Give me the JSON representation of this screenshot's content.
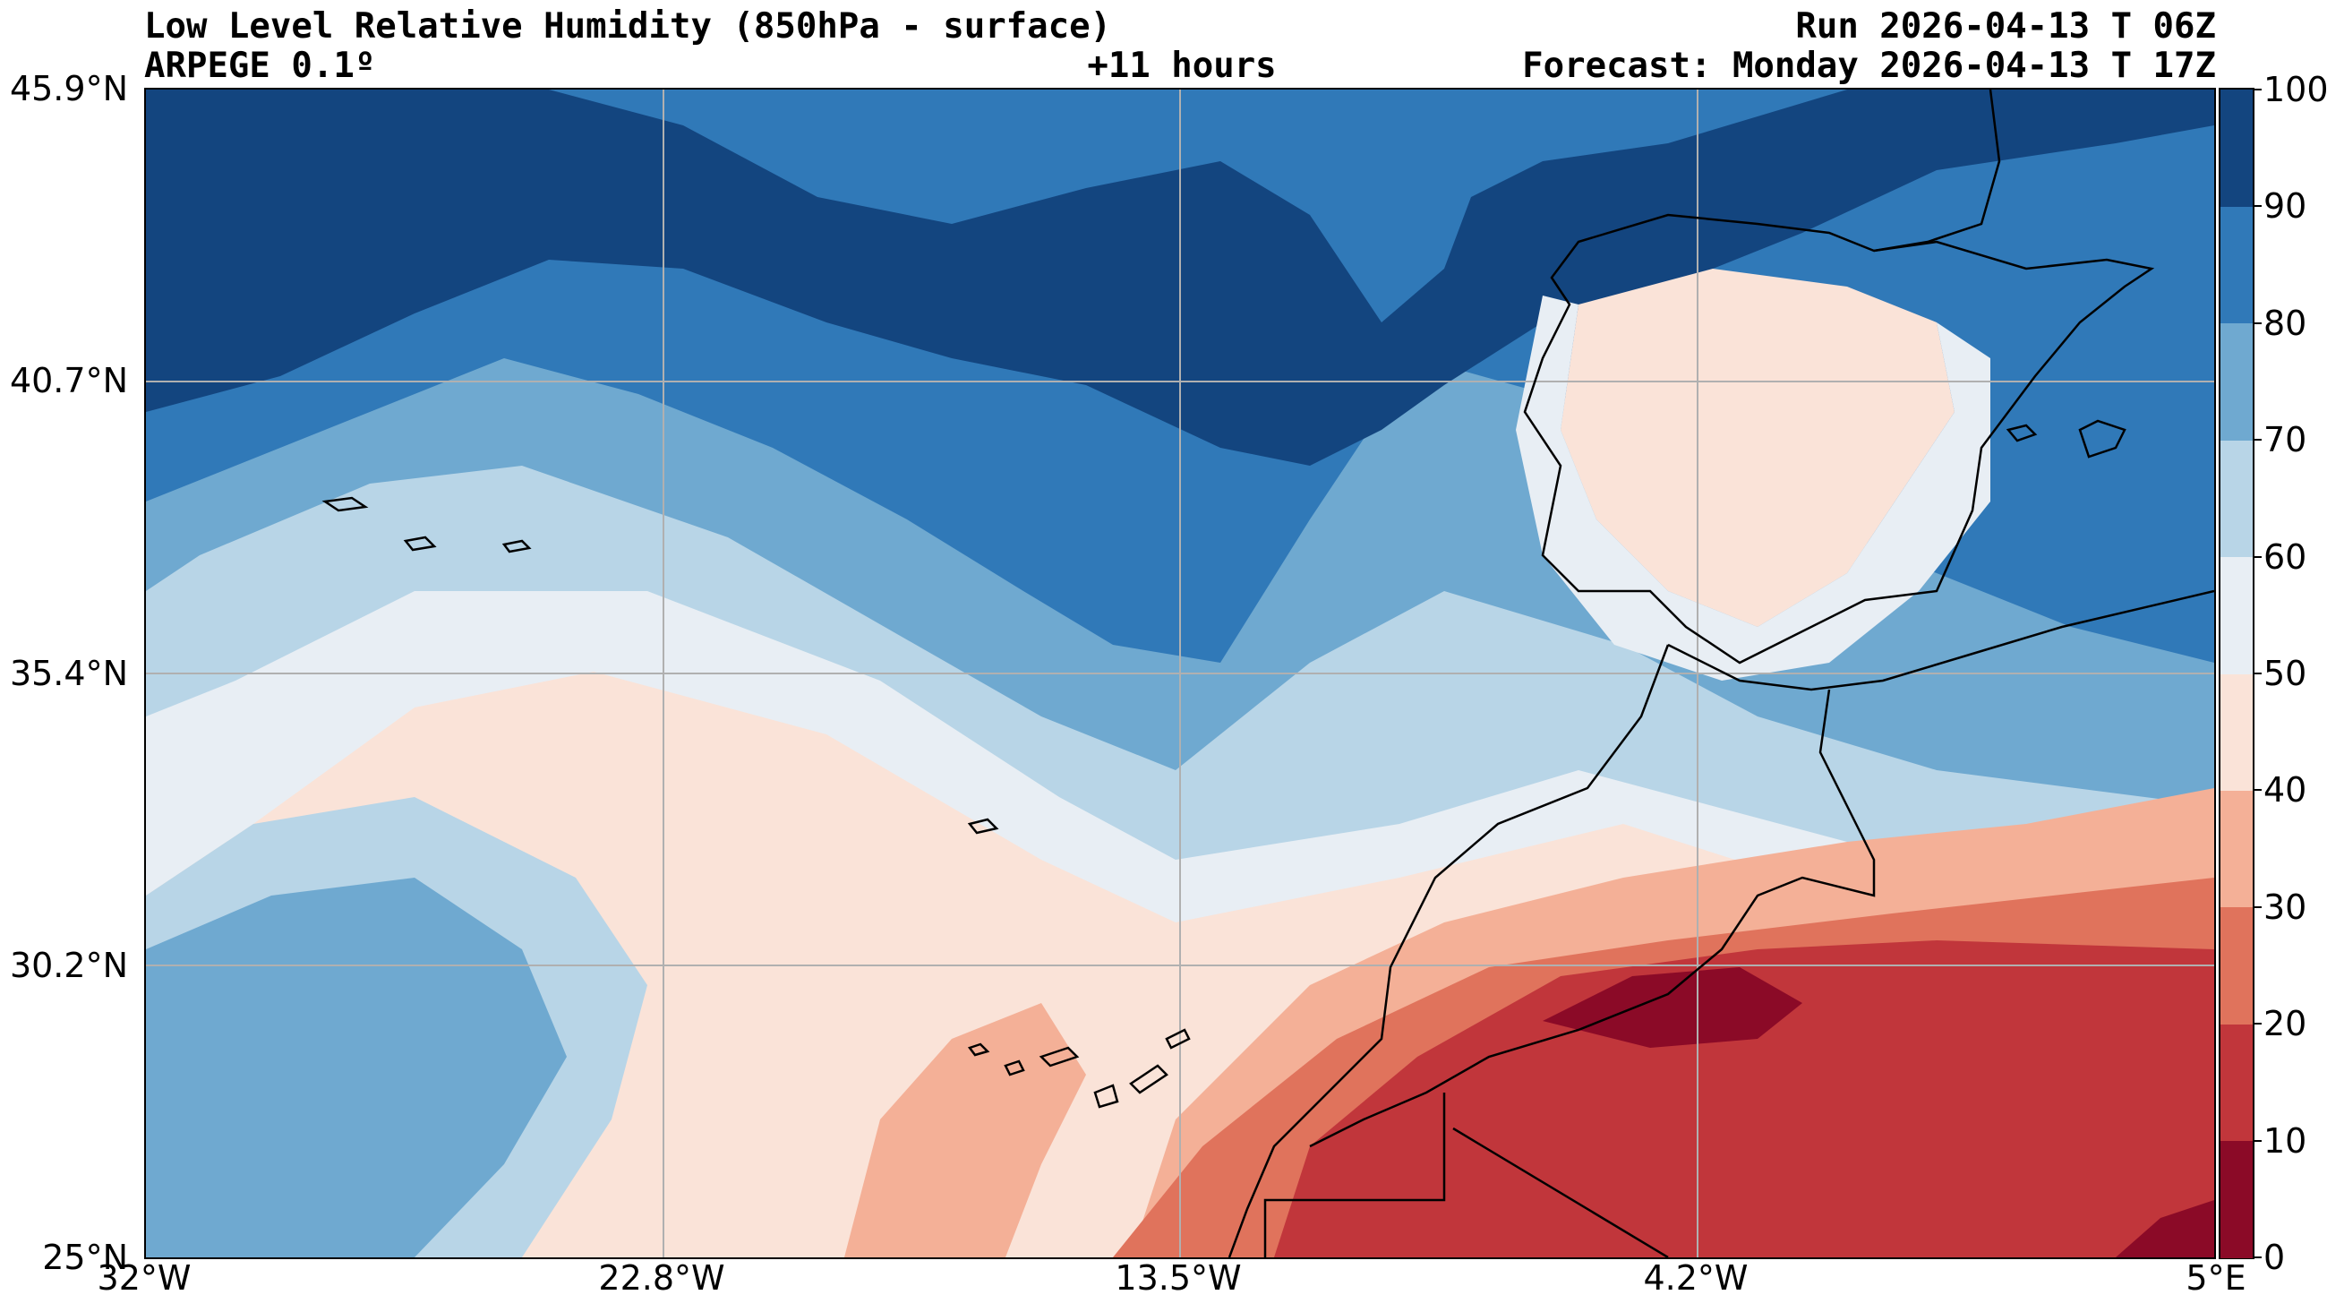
{
  "header": {
    "title": "Low Level Relative Humidity (850hPa - surface)",
    "model": "ARPEGE 0.1º",
    "lead_time": "+11 hours",
    "run": "Run 2026-04-13 T 06Z",
    "forecast": "Forecast: Monday 2026-04-13 T 17Z"
  },
  "axes": {
    "y_ticks": [
      "45.9°N",
      "40.7°N",
      "35.4°N",
      "30.2°N",
      "25°N"
    ],
    "x_ticks": [
      "32°W",
      "22.8°W",
      "13.5°W",
      "4.2°W",
      "5°E"
    ],
    "grid": true
  },
  "colorbar": {
    "ticks": [
      "0",
      "10",
      "20",
      "30",
      "40",
      "50",
      "60",
      "70",
      "80",
      "90",
      "100"
    ],
    "colors": [
      "#8b0a27",
      "#c1363b",
      "#e0735c",
      "#f4b097",
      "#fae3d8",
      "#e8eef4",
      "#b8d5e7",
      "#6fa9d0",
      "#3079b8",
      "#13457f"
    ]
  }
}
